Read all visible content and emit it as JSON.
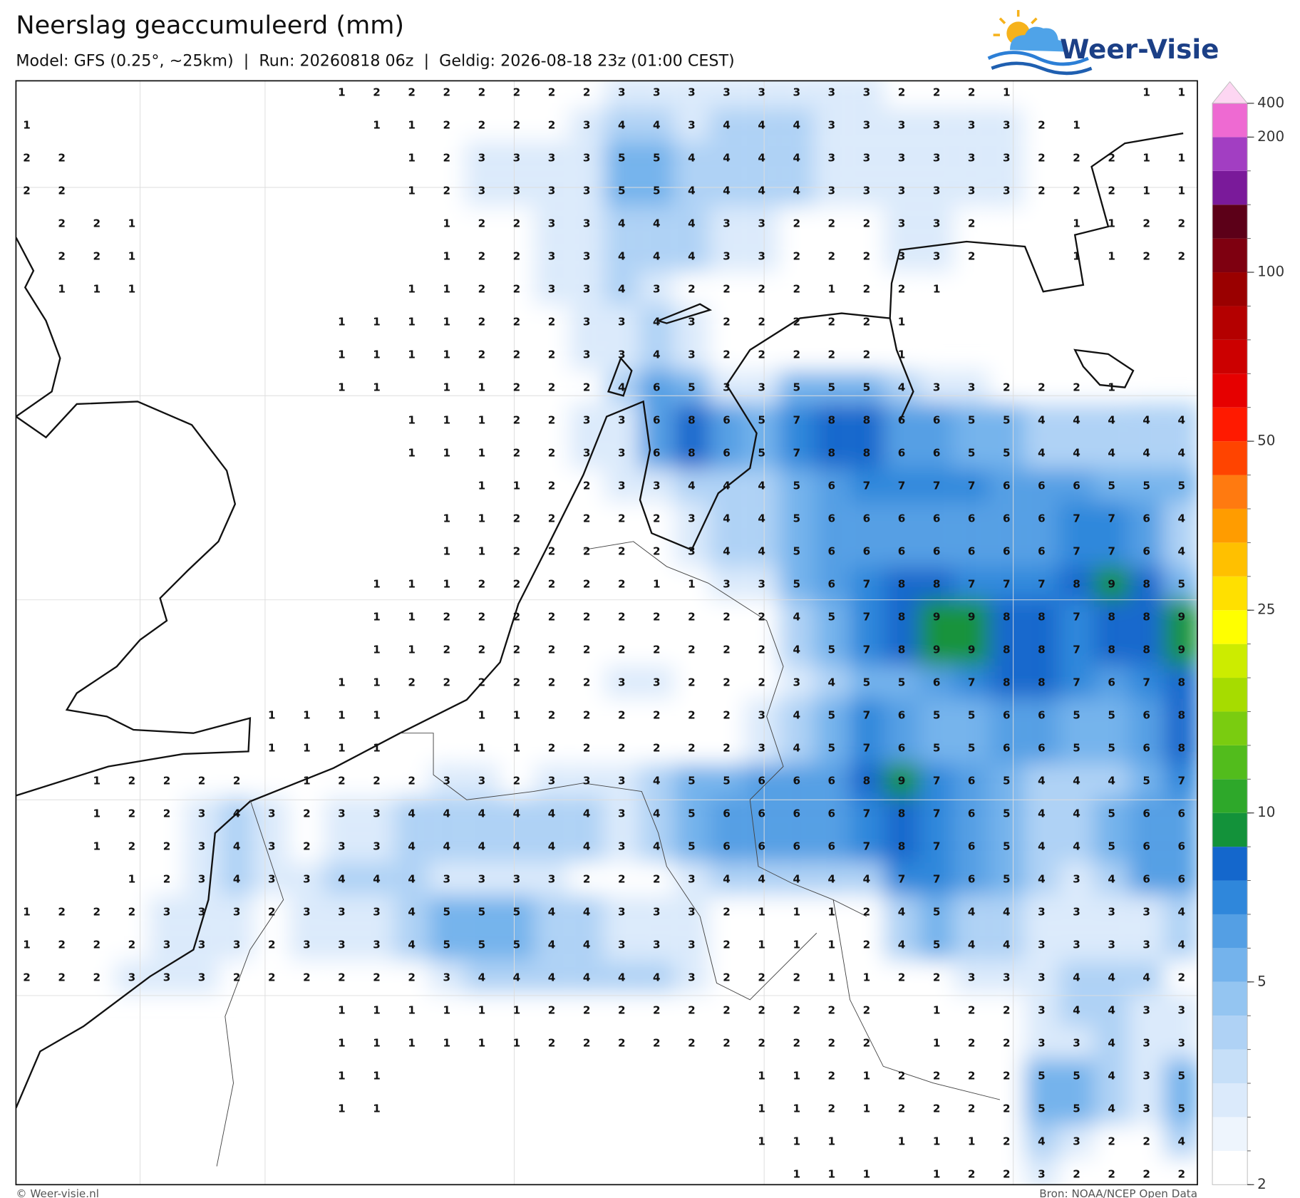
{
  "title": "Neerslag geaccumuleerd (mm)",
  "subtitle": "Model: GFS (0.25°, ~25km)  |  Run: 20260818 06z  |  Geldig: 2026-08-18 23z (01:00 CEST)",
  "logo": "Weer-Visie",
  "footer_left": "© Weer-visie.nl",
  "footer_right": "Bron: NOAA/NCEP Open Data",
  "colorbar": {
    "levels": [
      2,
      2.5,
      3,
      3.5,
      4,
      4.5,
      5,
      6,
      7,
      8,
      9,
      10,
      12.5,
      15,
      17.5,
      20,
      22.5,
      25,
      30,
      35,
      40,
      45,
      50,
      60,
      70,
      80,
      90,
      100,
      125,
      150,
      175,
      200,
      400
    ],
    "colors": [
      "#ffffff",
      "#eef5fd",
      "#dbeafb",
      "#c6dff8",
      "#afd2f5",
      "#94c5f1",
      "#74b3ec",
      "#549fe4",
      "#2f87db",
      "#1467cc",
      "#13923a",
      "#2ea82a",
      "#52bc1c",
      "#7acc10",
      "#a6dc00",
      "#ccec00",
      "#ffff00",
      "#ffe000",
      "#ffc000",
      "#ff9c00",
      "#ff7a10",
      "#ff4400",
      "#ff1a00",
      "#e60000",
      "#cc0000",
      "#b40000",
      "#9a0000",
      "#7e0010",
      "#5c0018",
      "#7a1a9a",
      "#a23ec2",
      "#ee6ad2"
    ],
    "extend_color": "#fdd6f2",
    "ticks": [
      2,
      5,
      10,
      25,
      50,
      100,
      200,
      400
    ]
  },
  "grid": [
    [
      null,
      null,
      null,
      null,
      null,
      null,
      null,
      null,
      null,
      1,
      2,
      2,
      2,
      2,
      2,
      2,
      2,
      3,
      3,
      3,
      3,
      3,
      3,
      3,
      3,
      2,
      2,
      2,
      1,
      null,
      null,
      null,
      1,
      1
    ],
    [
      1,
      null,
      null,
      null,
      null,
      null,
      null,
      null,
      null,
      null,
      1,
      1,
      2,
      2,
      2,
      2,
      3,
      4,
      4,
      3,
      4,
      4,
      4,
      3,
      3,
      3,
      3,
      3,
      3,
      2,
      1,
      null,
      null,
      null
    ],
    [
      2,
      2,
      null,
      null,
      null,
      null,
      null,
      null,
      null,
      null,
      null,
      1,
      2,
      3,
      3,
      3,
      3,
      5,
      5,
      4,
      4,
      4,
      4,
      3,
      3,
      3,
      3,
      3,
      3,
      2,
      2,
      2,
      1,
      1
    ],
    [
      2,
      2,
      null,
      null,
      null,
      null,
      null,
      null,
      null,
      null,
      null,
      1,
      2,
      3,
      3,
      3,
      3,
      5,
      5,
      4,
      4,
      4,
      4,
      3,
      3,
      3,
      3,
      3,
      3,
      2,
      2,
      2,
      1,
      1
    ],
    [
      null,
      2,
      2,
      1,
      null,
      null,
      null,
      null,
      null,
      null,
      null,
      null,
      1,
      2,
      2,
      3,
      3,
      4,
      4,
      4,
      3,
      3,
      2,
      2,
      2,
      3,
      3,
      2,
      null,
      null,
      1,
      1,
      2,
      2
    ],
    [
      null,
      2,
      2,
      1,
      null,
      null,
      null,
      null,
      null,
      null,
      null,
      null,
      1,
      2,
      2,
      3,
      3,
      4,
      4,
      4,
      3,
      3,
      2,
      2,
      2,
      3,
      3,
      2,
      null,
      null,
      1,
      1,
      2,
      2
    ],
    [
      null,
      1,
      1,
      1,
      null,
      null,
      null,
      null,
      null,
      null,
      null,
      1,
      1,
      2,
      2,
      3,
      3,
      4,
      3,
      2,
      2,
      2,
      2,
      1,
      2,
      2,
      1,
      null,
      null,
      null,
      null,
      null,
      null,
      null
    ],
    [
      null,
      null,
      null,
      null,
      null,
      null,
      null,
      null,
      null,
      1,
      1,
      1,
      1,
      2,
      2,
      2,
      3,
      3,
      4,
      3,
      2,
      2,
      2,
      2,
      2,
      1,
      null,
      null,
      null,
      null,
      null,
      null,
      null,
      null
    ],
    [
      null,
      null,
      null,
      null,
      null,
      null,
      null,
      null,
      null,
      1,
      1,
      1,
      1,
      2,
      2,
      2,
      3,
      3,
      4,
      3,
      2,
      2,
      2,
      2,
      2,
      1,
      null,
      null,
      null,
      null,
      null,
      null,
      null,
      null
    ],
    [
      null,
      null,
      null,
      null,
      null,
      null,
      null,
      null,
      null,
      1,
      1,
      null,
      1,
      1,
      2,
      2,
      2,
      4,
      6,
      5,
      3,
      3,
      5,
      5,
      5,
      4,
      3,
      3,
      2,
      2,
      2,
      1,
      null,
      null
    ],
    [
      null,
      null,
      null,
      null,
      null,
      null,
      null,
      null,
      null,
      null,
      null,
      1,
      1,
      1,
      2,
      2,
      3,
      3,
      6,
      8,
      6,
      5,
      7,
      8,
      8,
      6,
      6,
      5,
      5,
      4,
      4,
      4,
      4,
      4
    ],
    [
      null,
      null,
      null,
      null,
      null,
      null,
      null,
      null,
      null,
      null,
      null,
      1,
      1,
      1,
      2,
      2,
      3,
      3,
      6,
      8,
      6,
      5,
      7,
      8,
      8,
      6,
      6,
      5,
      5,
      4,
      4,
      4,
      4,
      4
    ],
    [
      null,
      null,
      null,
      null,
      null,
      null,
      null,
      null,
      null,
      null,
      null,
      null,
      null,
      1,
      1,
      2,
      2,
      3,
      3,
      4,
      4,
      4,
      5,
      6,
      7,
      7,
      7,
      7,
      6,
      6,
      6,
      5,
      5,
      5
    ],
    [
      null,
      null,
      null,
      null,
      null,
      null,
      null,
      null,
      null,
      null,
      null,
      null,
      1,
      1,
      2,
      2,
      2,
      2,
      2,
      3,
      4,
      4,
      5,
      6,
      6,
      6,
      6,
      6,
      6,
      6,
      7,
      7,
      6,
      4
    ],
    [
      null,
      null,
      null,
      null,
      null,
      null,
      null,
      null,
      null,
      null,
      null,
      null,
      1,
      1,
      2,
      2,
      2,
      2,
      2,
      3,
      4,
      4,
      5,
      6,
      6,
      6,
      6,
      6,
      6,
      6,
      7,
      7,
      6,
      4
    ],
    [
      null,
      null,
      null,
      null,
      null,
      null,
      null,
      null,
      null,
      null,
      1,
      1,
      1,
      2,
      2,
      2,
      2,
      2,
      1,
      1,
      3,
      3,
      5,
      6,
      7,
      8,
      8,
      7,
      7,
      7,
      8,
      9,
      8,
      5
    ],
    [
      null,
      null,
      null,
      null,
      null,
      null,
      null,
      null,
      null,
      null,
      1,
      1,
      2,
      2,
      2,
      2,
      2,
      2,
      2,
      2,
      2,
      2,
      4,
      5,
      7,
      8,
      9,
      9,
      8,
      8,
      7,
      8,
      8,
      9
    ],
    [
      null,
      null,
      null,
      null,
      null,
      null,
      null,
      null,
      null,
      null,
      1,
      1,
      2,
      2,
      2,
      2,
      2,
      2,
      2,
      2,
      2,
      2,
      4,
      5,
      7,
      8,
      9,
      9,
      8,
      8,
      7,
      8,
      8,
      9
    ],
    [
      null,
      null,
      null,
      null,
      null,
      null,
      null,
      null,
      null,
      1,
      1,
      2,
      2,
      2,
      2,
      2,
      2,
      3,
      3,
      2,
      2,
      2,
      3,
      4,
      5,
      5,
      6,
      7,
      8,
      8,
      7,
      6,
      7,
      8
    ],
    [
      null,
      null,
      null,
      null,
      null,
      null,
      null,
      1,
      1,
      1,
      1,
      null,
      null,
      1,
      1,
      2,
      2,
      2,
      2,
      2,
      2,
      3,
      4,
      5,
      7,
      6,
      5,
      5,
      6,
      6,
      5,
      5,
      6,
      8
    ],
    [
      null,
      null,
      null,
      null,
      null,
      null,
      null,
      1,
      1,
      1,
      1,
      null,
      null,
      1,
      1,
      2,
      2,
      2,
      2,
      2,
      2,
      3,
      4,
      5,
      7,
      6,
      5,
      5,
      6,
      6,
      5,
      5,
      6,
      8
    ],
    [
      null,
      null,
      1,
      2,
      2,
      2,
      2,
      null,
      1,
      2,
      2,
      2,
      3,
      3,
      2,
      3,
      3,
      3,
      4,
      5,
      5,
      6,
      6,
      6,
      8,
      9,
      7,
      6,
      5,
      4,
      4,
      4,
      5,
      7
    ],
    [
      null,
      null,
      1,
      2,
      2,
      3,
      4,
      3,
      2,
      3,
      3,
      4,
      4,
      4,
      4,
      4,
      4,
      3,
      4,
      5,
      6,
      6,
      6,
      6,
      7,
      8,
      7,
      6,
      5,
      4,
      4,
      5,
      6,
      6
    ],
    [
      null,
      null,
      1,
      2,
      2,
      3,
      4,
      3,
      2,
      3,
      3,
      4,
      4,
      4,
      4,
      4,
      4,
      3,
      4,
      5,
      6,
      6,
      6,
      6,
      7,
      8,
      7,
      6,
      5,
      4,
      4,
      5,
      6,
      6
    ],
    [
      null,
      null,
      null,
      1,
      2,
      3,
      4,
      3,
      3,
      4,
      4,
      4,
      3,
      3,
      3,
      3,
      2,
      2,
      2,
      3,
      4,
      4,
      4,
      4,
      4,
      7,
      7,
      6,
      5,
      4,
      3,
      4,
      6,
      6
    ],
    [
      1,
      2,
      2,
      2,
      3,
      3,
      3,
      2,
      3,
      3,
      3,
      4,
      5,
      5,
      5,
      4,
      4,
      3,
      3,
      3,
      2,
      1,
      1,
      1,
      2,
      4,
      5,
      4,
      4,
      3,
      3,
      3,
      3,
      4
    ],
    [
      1,
      2,
      2,
      2,
      3,
      3,
      3,
      2,
      3,
      3,
      3,
      4,
      5,
      5,
      5,
      4,
      4,
      3,
      3,
      3,
      2,
      1,
      1,
      1,
      2,
      4,
      5,
      4,
      4,
      3,
      3,
      3,
      3,
      4
    ],
    [
      2,
      2,
      2,
      3,
      3,
      3,
      2,
      2,
      2,
      2,
      2,
      2,
      3,
      4,
      4,
      4,
      4,
      4,
      4,
      3,
      2,
      2,
      2,
      1,
      1,
      2,
      2,
      3,
      3,
      3,
      4,
      4,
      4,
      2
    ],
    [
      null,
      null,
      null,
      null,
      null,
      null,
      null,
      null,
      null,
      1,
      1,
      1,
      1,
      1,
      1,
      2,
      2,
      2,
      2,
      2,
      2,
      2,
      2,
      2,
      2,
      null,
      1,
      2,
      2,
      3,
      4,
      4,
      3,
      3
    ],
    [
      null,
      null,
      null,
      null,
      null,
      null,
      null,
      null,
      null,
      1,
      1,
      1,
      1,
      1,
      1,
      2,
      2,
      2,
      2,
      2,
      2,
      2,
      2,
      2,
      2,
      null,
      1,
      2,
      2,
      3,
      3,
      4,
      3,
      3
    ],
    [
      null,
      null,
      null,
      null,
      null,
      null,
      null,
      null,
      null,
      1,
      1,
      null,
      null,
      null,
      null,
      null,
      null,
      null,
      null,
      null,
      null,
      1,
      1,
      2,
      1,
      2,
      2,
      2,
      2,
      5,
      5,
      4,
      3,
      5
    ],
    [
      null,
      null,
      null,
      null,
      null,
      null,
      null,
      null,
      null,
      1,
      1,
      null,
      null,
      null,
      null,
      null,
      null,
      null,
      null,
      null,
      null,
      1,
      1,
      2,
      1,
      2,
      2,
      2,
      2,
      5,
      5,
      4,
      3,
      5
    ],
    [
      null,
      null,
      null,
      null,
      null,
      null,
      null,
      null,
      null,
      null,
      null,
      null,
      null,
      null,
      null,
      null,
      null,
      null,
      null,
      null,
      null,
      1,
      1,
      1,
      null,
      1,
      1,
      1,
      2,
      4,
      3,
      2,
      2,
      4
    ],
    [
      null,
      null,
      null,
      null,
      null,
      null,
      null,
      null,
      null,
      null,
      null,
      null,
      null,
      null,
      null,
      null,
      null,
      null,
      null,
      null,
      null,
      null,
      1,
      1,
      1,
      null,
      1,
      2,
      2,
      3,
      2,
      2,
      2,
      2
    ]
  ]
}
